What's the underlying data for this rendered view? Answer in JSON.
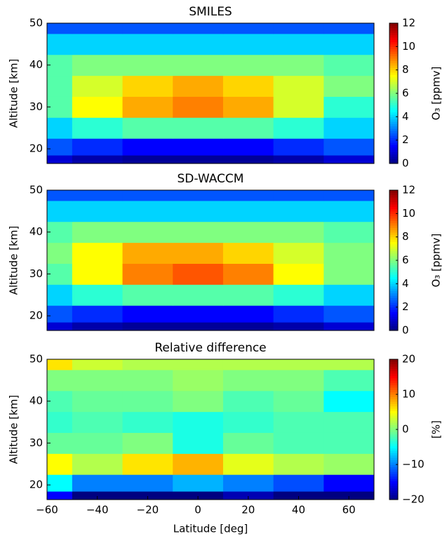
{
  "chart_data": [
    {
      "type": "heatmap",
      "title": "SMILES",
      "ylabel": "Altitude [km]",
      "colorbar_label": "O₃ [ppmv]",
      "colormap": "jet",
      "x": [
        -60,
        -40,
        -20,
        0,
        20,
        40,
        60
      ],
      "y": [
        17,
        20,
        25,
        30,
        35,
        40,
        45,
        50
      ],
      "z": [
        [
          1,
          0.5,
          0.3,
          0.3,
          0.3,
          0.5,
          1
        ],
        [
          2.5,
          2,
          1.5,
          1.5,
          1.5,
          2,
          2.5
        ],
        [
          4,
          5,
          5.5,
          5.5,
          5.5,
          5,
          4
        ],
        [
          5.5,
          7.5,
          8.5,
          9,
          8.5,
          7,
          5
        ],
        [
          5.5,
          7,
          8,
          8.5,
          8,
          7,
          6
        ],
        [
          5.5,
          6,
          6,
          6,
          6,
          6,
          5.5
        ],
        [
          4,
          4,
          4,
          4,
          4,
          4,
          4
        ],
        [
          2.5,
          2.5,
          2.5,
          2.5,
          2.5,
          2.5,
          2.5
        ]
      ],
      "xlim": [
        -60,
        70
      ],
      "ylim": [
        16.5,
        50
      ],
      "yticks": [
        20,
        30,
        40,
        50
      ],
      "clim": [
        0,
        12
      ],
      "cticks": [
        0,
        2,
        4,
        6,
        8,
        10,
        12
      ]
    },
    {
      "type": "heatmap",
      "title": "SD-WACCM",
      "ylabel": "Altitude [km]",
      "colorbar_label": "O₃ [ppmv]",
      "colormap": "jet",
      "x": [
        -60,
        -40,
        -20,
        0,
        20,
        40,
        60
      ],
      "y": [
        17,
        20,
        25,
        30,
        35,
        40,
        45,
        50
      ],
      "z": [
        [
          1,
          0.5,
          0.3,
          0.3,
          0.3,
          0.5,
          1
        ],
        [
          2.5,
          2,
          1.5,
          1.5,
          1.5,
          2,
          2.5
        ],
        [
          4,
          5,
          5.5,
          5.5,
          5.5,
          5,
          4
        ],
        [
          5.5,
          7.5,
          9,
          9.5,
          9,
          7.5,
          6
        ],
        [
          6,
          7.5,
          8.5,
          8.5,
          8,
          7,
          6
        ],
        [
          5.5,
          6,
          6,
          6,
          6,
          6,
          5.5
        ],
        [
          4,
          4,
          4,
          4,
          4,
          4,
          4
        ],
        [
          2.5,
          2.5,
          2.5,
          2.5,
          2.5,
          2.5,
          2.5
        ]
      ],
      "xlim": [
        -60,
        70
      ],
      "ylim": [
        16.5,
        50
      ],
      "yticks": [
        20,
        30,
        40,
        50
      ],
      "clim": [
        0,
        12
      ],
      "cticks": [
        0,
        2,
        4,
        6,
        8,
        10,
        12
      ]
    },
    {
      "type": "heatmap",
      "title": "Relative difference",
      "ylabel": "Altitude [km]",
      "xlabel": "Latitude [deg]",
      "colorbar_label": "[%]",
      "colormap": "jet",
      "x": [
        -60,
        -40,
        -20,
        0,
        20,
        40,
        60
      ],
      "y": [
        17,
        20,
        25,
        30,
        35,
        40,
        45,
        50
      ],
      "z": [
        [
          -15,
          -20,
          -20,
          -20,
          -18,
          -20,
          -20
        ],
        [
          -5,
          -10,
          -10,
          -8,
          -10,
          -12,
          -15
        ],
        [
          5,
          2,
          6,
          8,
          4,
          2,
          1
        ],
        [
          -1,
          -1,
          0,
          -4,
          -1,
          -2,
          -2
        ],
        [
          -3,
          -2,
          -3,
          -4,
          -3,
          -2,
          -2
        ],
        [
          -2,
          -1,
          -1,
          0,
          -2,
          -1,
          -5
        ],
        [
          0,
          0,
          0,
          1,
          0,
          0,
          -2
        ],
        [
          6,
          3,
          2,
          2,
          2,
          2,
          2
        ]
      ],
      "xlim": [
        -60,
        70
      ],
      "ylim": [
        16.5,
        50
      ],
      "yticks": [
        20,
        30,
        40,
        50
      ],
      "xticks": [
        {
          "value": -60,
          "label": "−60"
        },
        {
          "value": -40,
          "label": "−40"
        },
        {
          "value": -20,
          "label": "−20"
        },
        0,
        20,
        40,
        60
      ],
      "clim": [
        -20,
        20
      ],
      "cticks": [
        {
          "value": -20,
          "label": "−20"
        },
        {
          "value": -10,
          "label": "−10"
        },
        0,
        10,
        20
      ]
    }
  ]
}
